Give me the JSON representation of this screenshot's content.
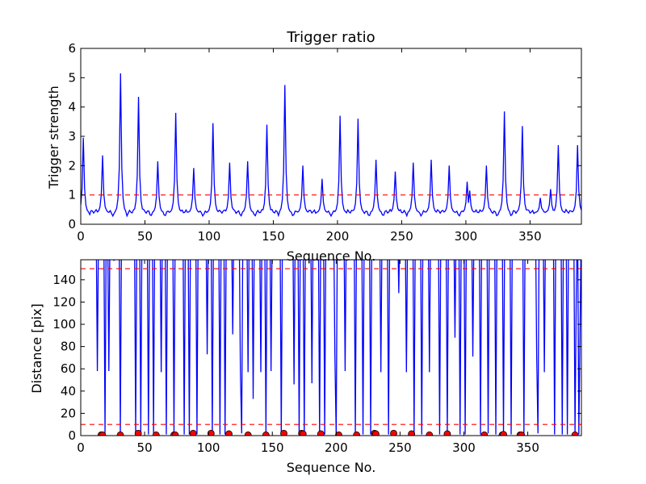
{
  "chart_data": [
    {
      "type": "line",
      "title": "Trigger ratio",
      "xlabel": "Sequence No.",
      "ylabel": "Trigger strength",
      "xlim": [
        0,
        390
      ],
      "ylim": [
        0,
        6
      ],
      "xticks": [
        0,
        50,
        100,
        150,
        200,
        250,
        300,
        350
      ],
      "yticks": [
        0,
        1,
        2,
        3,
        4,
        5,
        6
      ],
      "grid": false,
      "colors": {
        "series": "#0000ff",
        "threshold": "#ff0000"
      },
      "threshold": 1.0,
      "baseline": 0.4,
      "peaks": [
        [
          2,
          2.95
        ],
        [
          17,
          2.35
        ],
        [
          31,
          5.15
        ],
        [
          45,
          4.35
        ],
        [
          60,
          2.15
        ],
        [
          73,
          1.1
        ],
        [
          74,
          3.8
        ],
        [
          88,
          1.92
        ],
        [
          103,
          3.45
        ],
        [
          116,
          2.1
        ],
        [
          130,
          2.15
        ],
        [
          145,
          3.4
        ],
        [
          159,
          4.75
        ],
        [
          173,
          2.0
        ],
        [
          188,
          1.55
        ],
        [
          202,
          3.7
        ],
        [
          216,
          3.6
        ],
        [
          230,
          2.2
        ],
        [
          245,
          1.8
        ],
        [
          259,
          2.1
        ],
        [
          273,
          2.2
        ],
        [
          287,
          2.0
        ],
        [
          301,
          1.45
        ],
        [
          303,
          1.15
        ],
        [
          316,
          2.0
        ],
        [
          330,
          3.85
        ],
        [
          344,
          3.35
        ],
        [
          358,
          0.9
        ],
        [
          366,
          1.2
        ],
        [
          372,
          2.7
        ],
        [
          387,
          2.7
        ]
      ]
    },
    {
      "type": "line",
      "title": "",
      "xlabel": "Sequence No.",
      "ylabel": "Distance [pix]",
      "xlim": [
        0,
        392
      ],
      "ylim": [
        0,
        158
      ],
      "xticks": [
        0,
        50,
        100,
        150,
        200,
        250,
        300,
        350
      ],
      "yticks": [
        0,
        20,
        40,
        60,
        80,
        100,
        120,
        140
      ],
      "grid": false,
      "colors": {
        "series": "#0000ff",
        "threshold": "#ff0000",
        "markers": "#ff0000"
      },
      "thresholds": [
        10,
        150
      ],
      "segments": [
        [
          0,
          200
        ],
        [
          12,
          200
        ],
        [
          13,
          58
        ],
        [
          14,
          200
        ],
        [
          18,
          200
        ],
        [
          19,
          2
        ],
        [
          20,
          200
        ],
        [
          21,
          200
        ],
        [
          22,
          58
        ],
        [
          23,
          200
        ],
        [
          25,
          200
        ],
        [
          26,
          157
        ],
        [
          27,
          200
        ],
        [
          30,
          200
        ],
        [
          31,
          1
        ],
        [
          32,
          200
        ],
        [
          42,
          200
        ],
        [
          43,
          2
        ],
        [
          44,
          200
        ],
        [
          46,
          200
        ],
        [
          47,
          2
        ],
        [
          48,
          200
        ],
        [
          52,
          200
        ],
        [
          53,
          1
        ],
        [
          54,
          200
        ],
        [
          56,
          200
        ],
        [
          57,
          2
        ],
        [
          58,
          200
        ],
        [
          62,
          200
        ],
        [
          63,
          57
        ],
        [
          64,
          200
        ],
        [
          66,
          200
        ],
        [
          67,
          1
        ],
        [
          68,
          200
        ],
        [
          72,
          200
        ],
        [
          73,
          1
        ],
        [
          74,
          200
        ],
        [
          80,
          200
        ],
        [
          81,
          1
        ],
        [
          82,
          200
        ],
        [
          84,
          200
        ],
        [
          85,
          1
        ],
        [
          86,
          200
        ],
        [
          90,
          200
        ],
        [
          91,
          1
        ],
        [
          92,
          200
        ],
        [
          98,
          200
        ],
        [
          99,
          73
        ],
        [
          100,
          200
        ],
        [
          102,
          200
        ],
        [
          103,
          1
        ],
        [
          104,
          200
        ],
        [
          108,
          200
        ],
        [
          109,
          1
        ],
        [
          110,
          200
        ],
        [
          112,
          200
        ],
        [
          113,
          1
        ],
        [
          114,
          200
        ],
        [
          118,
          200
        ],
        [
          119,
          91
        ],
        [
          120,
          200
        ],
        [
          124,
          200
        ],
        [
          125,
          58
        ],
        [
          126,
          2
        ],
        [
          127,
          200
        ],
        [
          130,
          200
        ],
        [
          131,
          57
        ],
        [
          132,
          200
        ],
        [
          134,
          200
        ],
        [
          135,
          33
        ],
        [
          136,
          200
        ],
        [
          140,
          200
        ],
        [
          141,
          57
        ],
        [
          142,
          200
        ],
        [
          144,
          200
        ],
        [
          145,
          1
        ],
        [
          146,
          200
        ],
        [
          148,
          200
        ],
        [
          149,
          58
        ],
        [
          150,
          200
        ],
        [
          156,
          200
        ],
        [
          157,
          1
        ],
        [
          158,
          200
        ],
        [
          166,
          200
        ],
        [
          167,
          46
        ],
        [
          168,
          200
        ],
        [
          170,
          200
        ],
        [
          171,
          1
        ],
        [
          172,
          200
        ],
        [
          174,
          200
        ],
        [
          175,
          1
        ],
        [
          176,
          200
        ],
        [
          180,
          200
        ],
        [
          181,
          47
        ],
        [
          182,
          200
        ],
        [
          186,
          200
        ],
        [
          187,
          1
        ],
        [
          188,
          200
        ],
        [
          190,
          200
        ],
        [
          191,
          1
        ],
        [
          192,
          200
        ],
        [
          198,
          200
        ],
        [
          199,
          71
        ],
        [
          200,
          1
        ],
        [
          201,
          200
        ],
        [
          206,
          200
        ],
        [
          207,
          58
        ],
        [
          208,
          200
        ],
        [
          214,
          200
        ],
        [
          215,
          1
        ],
        [
          216,
          200
        ],
        [
          220,
          200
        ],
        [
          221,
          1
        ],
        [
          222,
          200
        ],
        [
          226,
          200
        ],
        [
          227,
          1
        ],
        [
          228,
          200
        ],
        [
          234,
          200
        ],
        [
          235,
          57
        ],
        [
          236,
          200
        ],
        [
          240,
          200
        ],
        [
          241,
          1
        ],
        [
          242,
          200
        ],
        [
          248,
          200
        ],
        [
          249,
          128
        ],
        [
          250,
          200
        ],
        [
          254,
          200
        ],
        [
          255,
          57
        ],
        [
          256,
          200
        ],
        [
          260,
          200
        ],
        [
          261,
          1
        ],
        [
          262,
          200
        ],
        [
          266,
          200
        ],
        [
          267,
          1
        ],
        [
          268,
          200
        ],
        [
          272,
          200
        ],
        [
          273,
          57
        ],
        [
          274,
          200
        ],
        [
          280,
          200
        ],
        [
          281,
          1
        ],
        [
          282,
          200
        ],
        [
          286,
          200
        ],
        [
          287,
          1
        ],
        [
          288,
          200
        ],
        [
          292,
          200
        ],
        [
          293,
          88
        ],
        [
          294,
          200
        ],
        [
          296,
          200
        ],
        [
          297,
          1
        ],
        [
          298,
          200
        ],
        [
          300,
          200
        ],
        [
          301,
          1
        ],
        [
          302,
          200
        ],
        [
          306,
          200
        ],
        [
          307,
          71
        ],
        [
          308,
          200
        ],
        [
          312,
          200
        ],
        [
          313,
          1
        ],
        [
          314,
          200
        ],
        [
          318,
          200
        ],
        [
          319,
          2
        ],
        [
          320,
          200
        ],
        [
          324,
          200
        ],
        [
          325,
          1
        ],
        [
          326,
          200
        ],
        [
          330,
          200
        ],
        [
          331,
          1
        ],
        [
          332,
          200
        ],
        [
          336,
          200
        ],
        [
          337,
          1
        ],
        [
          338,
          200
        ],
        [
          346,
          200
        ],
        [
          347,
          1
        ],
        [
          348,
          200
        ],
        [
          356,
          200
        ],
        [
          357,
          71
        ],
        [
          358,
          2
        ],
        [
          359,
          200
        ],
        [
          362,
          200
        ],
        [
          363,
          57
        ],
        [
          364,
          200
        ],
        [
          370,
          200
        ],
        [
          371,
          1
        ],
        [
          372,
          200
        ],
        [
          376,
          200
        ],
        [
          377,
          1
        ],
        [
          378,
          200
        ],
        [
          380,
          200
        ],
        [
          381,
          1
        ],
        [
          382,
          200
        ],
        [
          386,
          200
        ],
        [
          387,
          1
        ],
        [
          388,
          128
        ],
        [
          389,
          200
        ],
        [
          390,
          1
        ],
        [
          392,
          200
        ]
      ],
      "markers": [
        [
          16,
          0.5
        ],
        [
          17,
          0.5
        ],
        [
          31,
          0.5
        ],
        [
          45,
          2
        ],
        [
          59,
          0.5
        ],
        [
          73,
          0.5
        ],
        [
          74,
          0.5
        ],
        [
          88,
          2
        ],
        [
          102,
          2
        ],
        [
          116,
          1.5
        ],
        [
          131,
          0.5
        ],
        [
          145,
          0.5
        ],
        [
          159,
          2
        ],
        [
          173,
          2
        ],
        [
          174,
          1.5
        ],
        [
          188,
          1.5
        ],
        [
          202,
          0.5
        ],
        [
          216,
          0.5
        ],
        [
          230,
          2
        ],
        [
          231,
          1.5
        ],
        [
          245,
          2
        ],
        [
          259,
          1.5
        ],
        [
          273,
          0.5
        ],
        [
          287,
          1.5
        ],
        [
          316,
          0.5
        ],
        [
          330,
          0.5
        ],
        [
          331,
          1
        ],
        [
          344,
          0.5
        ],
        [
          345,
          0.5
        ],
        [
          387,
          0.5
        ]
      ]
    }
  ]
}
